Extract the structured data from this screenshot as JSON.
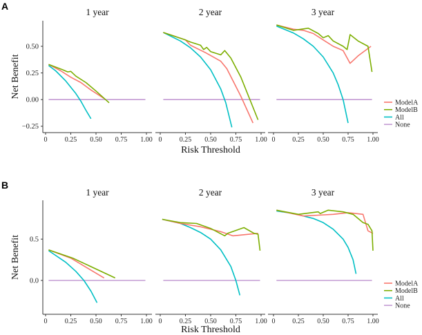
{
  "colors": {
    "ModelA": "#F8766D",
    "ModelB": "#7CAE00",
    "All": "#00BFC4",
    "None": "#C39BD3"
  },
  "chart_data": [
    {
      "panel_label": "A",
      "type": "line",
      "xlabel": "Risk Threshold",
      "ylabel": "Net Benefit",
      "xlim": [
        0,
        1
      ],
      "ylim": [
        -0.31,
        0.74
      ],
      "xticks": [
        "0",
        "0.25",
        "0.50",
        "0.75",
        "1.00"
      ],
      "xtick_values": [
        0,
        0.25,
        0.5,
        0.75,
        1
      ],
      "yticks": [
        "−0.25",
        "0.00",
        "0.25",
        "0.50"
      ],
      "ytick_values": [
        -0.25,
        0,
        0.25,
        0.5
      ],
      "legend": [
        "ModelA",
        "ModelB",
        "All",
        "None"
      ],
      "legend_position": "right",
      "facets": [
        {
          "title": "1  year",
          "series": [
            {
              "name": "ModelA",
              "x": [
                0.03,
                0.15,
                0.25,
                0.35,
                0.45,
                0.58
              ],
              "y": [
                0.33,
                0.27,
                0.21,
                0.16,
                0.09,
                0.01
              ]
            },
            {
              "name": "ModelB",
              "x": [
                0.03,
                0.17,
                0.22,
                0.25,
                0.3,
                0.4,
                0.5,
                0.63
              ],
              "y": [
                0.33,
                0.28,
                0.26,
                0.265,
                0.22,
                0.16,
                0.08,
                -0.03
              ]
            },
            {
              "name": "All",
              "x": [
                0.03,
                0.1,
                0.2,
                0.3,
                0.35,
                0.4,
                0.45
              ],
              "y": [
                0.32,
                0.27,
                0.175,
                0.057,
                -0.015,
                -0.1,
                -0.18
              ]
            },
            {
              "name": "None",
              "x": [
                0.03,
                0.99
              ],
              "y": [
                0,
                0
              ]
            }
          ]
        },
        {
          "title": "2  year",
          "series": [
            {
              "name": "ModelA",
              "x": [
                0.03,
                0.25,
                0.3,
                0.45,
                0.6,
                0.66,
                0.8,
                0.92
              ],
              "y": [
                0.63,
                0.56,
                0.51,
                0.44,
                0.36,
                0.29,
                0.03,
                -0.22
              ]
            },
            {
              "name": "ModelB",
              "x": [
                0.03,
                0.25,
                0.3,
                0.4,
                0.43,
                0.46,
                0.5,
                0.6,
                0.64,
                0.7,
                0.8,
                0.97
              ],
              "y": [
                0.63,
                0.56,
                0.54,
                0.51,
                0.47,
                0.49,
                0.45,
                0.42,
                0.46,
                0.39,
                0.21,
                -0.19
              ]
            },
            {
              "name": "All",
              "x": [
                0.03,
                0.2,
                0.3,
                0.4,
                0.5,
                0.6,
                0.65,
                0.71
              ],
              "y": [
                0.63,
                0.55,
                0.486,
                0.4,
                0.28,
                0.1,
                -0.03,
                -0.26
              ]
            },
            {
              "name": "None",
              "x": [
                0.03,
                0.99
              ],
              "y": [
                0,
                0
              ]
            }
          ]
        },
        {
          "title": "3  year",
          "series": [
            {
              "name": "ModelA",
              "x": [
                0.03,
                0.2,
                0.3,
                0.4,
                0.5,
                0.6,
                0.7,
                0.77,
                0.85,
                0.98
              ],
              "y": [
                0.7,
                0.66,
                0.65,
                0.62,
                0.56,
                0.5,
                0.46,
                0.34,
                0.41,
                0.5
              ]
            },
            {
              "name": "ModelB",
              "x": [
                0.03,
                0.2,
                0.35,
                0.45,
                0.5,
                0.55,
                0.6,
                0.7,
                0.74,
                0.77,
                0.85,
                0.95,
                0.99
              ],
              "y": [
                0.7,
                0.65,
                0.67,
                0.62,
                0.58,
                0.6,
                0.55,
                0.5,
                0.47,
                0.61,
                0.55,
                0.5,
                0.26
              ]
            },
            {
              "name": "All",
              "x": [
                0.03,
                0.2,
                0.3,
                0.4,
                0.5,
                0.6,
                0.65,
                0.7,
                0.75
              ],
              "y": [
                0.69,
                0.625,
                0.57,
                0.5,
                0.4,
                0.25,
                0.14,
                0,
                -0.22
              ]
            },
            {
              "name": "None",
              "x": [
                0.03,
                0.99
              ],
              "y": [
                0,
                0
              ]
            }
          ]
        }
      ]
    },
    {
      "panel_label": "B",
      "type": "line",
      "xlabel": "Risk Threshold",
      "ylabel": "Net Benefit",
      "xlim": [
        0,
        1
      ],
      "ylim": [
        -0.41,
        0.97
      ],
      "xticks": [
        "0",
        "0.25",
        "0.50",
        "0.75",
        "1.00"
      ],
      "xtick_values": [
        0,
        0.25,
        0.5,
        0.75,
        1
      ],
      "yticks": [
        "0.0",
        "0.5"
      ],
      "ytick_values": [
        0,
        0.5
      ],
      "legend": [
        "ModelA",
        "ModelB",
        "All",
        "None"
      ],
      "legend_position": "right",
      "facets": [
        {
          "title": "1  year",
          "series": [
            {
              "name": "ModelA",
              "x": [
                0.03,
                0.25,
                0.58
              ],
              "y": [
                0.37,
                0.27,
                0.03
              ]
            },
            {
              "name": "ModelB",
              "x": [
                0.03,
                0.27,
                0.69
              ],
              "y": [
                0.37,
                0.27,
                0.03
              ]
            },
            {
              "name": "All",
              "x": [
                0.03,
                0.2,
                0.3,
                0.38,
                0.45,
                0.51
              ],
              "y": [
                0.36,
                0.22,
                0.11,
                0,
                -0.13,
                -0.27
              ]
            },
            {
              "name": "None",
              "x": [
                0.03,
                0.99
              ],
              "y": [
                0,
                0
              ]
            }
          ]
        },
        {
          "title": "2  year",
          "series": [
            {
              "name": "ModelA",
              "x": [
                0.02,
                0.2,
                0.4,
                0.6,
                0.72,
                0.97
              ],
              "y": [
                0.74,
                0.69,
                0.65,
                0.59,
                0.54,
                0.57
              ]
            },
            {
              "name": "ModelB",
              "x": [
                0.02,
                0.2,
                0.36,
                0.5,
                0.64,
                0.67,
                0.83,
                0.93,
                0.97,
                0.99
              ],
              "y": [
                0.74,
                0.7,
                0.69,
                0.63,
                0.54,
                0.57,
                0.64,
                0.57,
                0.56,
                0.36
              ]
            },
            {
              "name": "All",
              "x": [
                0.02,
                0.2,
                0.3,
                0.4,
                0.5,
                0.6,
                0.7,
                0.75,
                0.79
              ],
              "y": [
                0.74,
                0.69,
                0.64,
                0.58,
                0.5,
                0.37,
                0.17,
                0,
                -0.18
              ]
            },
            {
              "name": "None",
              "x": [
                0.03,
                0.99
              ],
              "y": [
                0,
                0
              ]
            }
          ]
        },
        {
          "title": "3  year",
          "series": [
            {
              "name": "ModelA",
              "x": [
                0.03,
                0.3,
                0.45,
                0.6,
                0.75,
                0.9,
                0.95,
                1.0
              ],
              "y": [
                0.85,
                0.78,
                0.79,
                0.8,
                0.82,
                0.8,
                0.6,
                0.57
              ]
            },
            {
              "name": "ModelB",
              "x": [
                0.03,
                0.25,
                0.45,
                0.47,
                0.55,
                0.7,
                0.8,
                0.9,
                0.95,
                0.99,
                1.0
              ],
              "y": [
                0.85,
                0.8,
                0.83,
                0.81,
                0.85,
                0.83,
                0.8,
                0.7,
                0.68,
                0.6,
                0.36
              ]
            },
            {
              "name": "All",
              "x": [
                0.03,
                0.2,
                0.4,
                0.5,
                0.6,
                0.7,
                0.75,
                0.8,
                0.83
              ],
              "y": [
                0.84,
                0.81,
                0.75,
                0.7,
                0.62,
                0.5,
                0.4,
                0.25,
                0.08
              ]
            },
            {
              "name": "None",
              "x": [
                0.03,
                0.99
              ],
              "y": [
                0,
                0
              ]
            }
          ]
        }
      ]
    }
  ]
}
